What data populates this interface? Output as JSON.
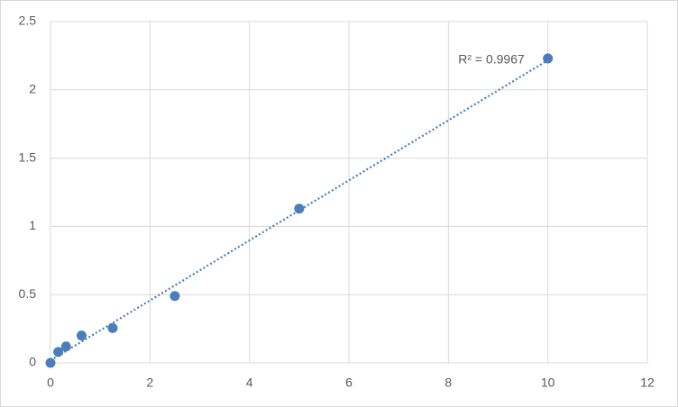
{
  "chart_data": {
    "type": "scatter",
    "annotation": "R² = 0.9967",
    "series": [
      {
        "color": "#4a7ebb",
        "x": [
          0,
          0.156,
          0.3125,
          0.625,
          1.25,
          2.5,
          5,
          10
        ],
        "values": [
          0,
          0.08,
          0.12,
          0.2,
          0.255,
          0.49,
          1.13,
          2.23
        ]
      }
    ],
    "trendline": "linear",
    "xlim": [
      0,
      12
    ],
    "xticks": [
      0,
      2,
      4,
      6,
      8,
      10,
      12
    ],
    "ylim": [
      0,
      2.5
    ],
    "yticks": [
      0,
      0.5,
      1,
      1.5,
      2,
      2.5
    ],
    "grid": true
  }
}
